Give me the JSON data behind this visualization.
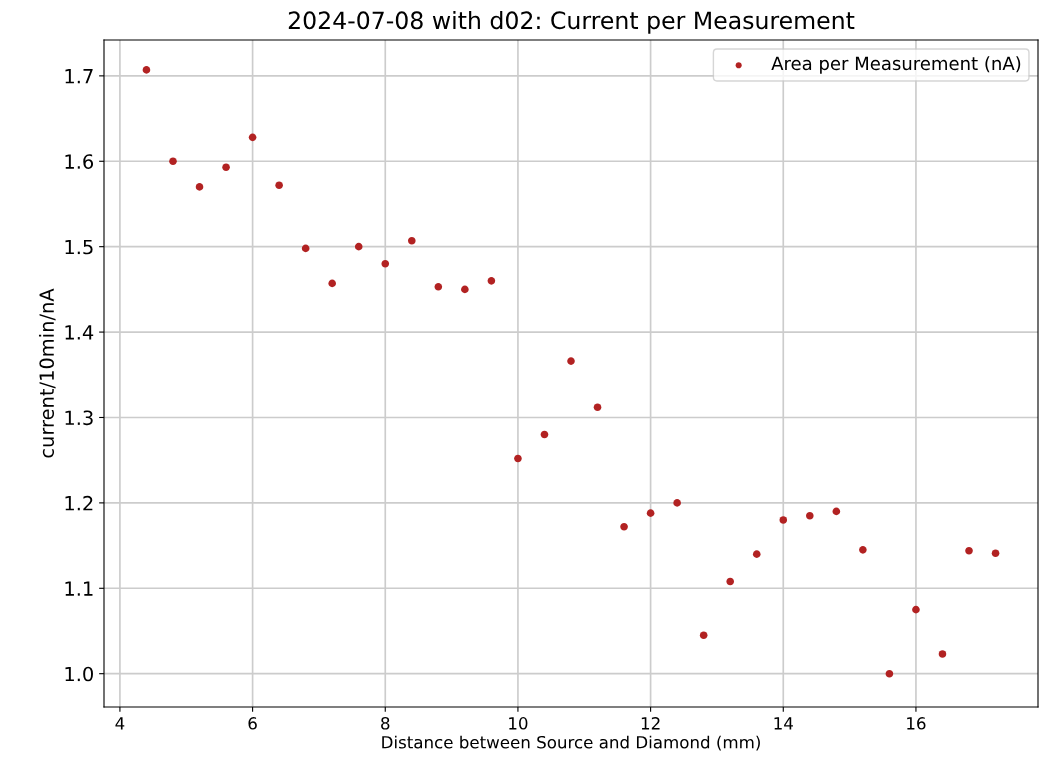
{
  "chart_data": {
    "type": "scatter",
    "title": "2024-07-08 with d02: Current per Measurement",
    "xlabel": "Distance between Source and Diamond (mm)",
    "ylabel": "current/10min/nA",
    "x": [
      4.4,
      4.8,
      5.2,
      5.6,
      6.0,
      6.4,
      6.8,
      7.2,
      7.6,
      8.0,
      8.4,
      8.8,
      9.2,
      9.6,
      10.0,
      10.4,
      10.8,
      11.2,
      11.6,
      12.0,
      12.4,
      12.8,
      13.2,
      13.6,
      14.0,
      14.4,
      14.8,
      15.2,
      15.6,
      16.0,
      16.4,
      16.8,
      17.2
    ],
    "series": [
      {
        "name": "Area per Measurement (nA)",
        "color": "#b22222",
        "values": [
          1.707,
          1.6,
          1.57,
          1.593,
          1.628,
          1.572,
          1.498,
          1.457,
          1.5,
          1.48,
          1.507,
          1.453,
          1.45,
          1.46,
          1.252,
          1.28,
          1.366,
          1.312,
          1.172,
          1.188,
          1.2,
          1.045,
          1.108,
          1.14,
          1.18,
          1.185,
          1.19,
          1.145,
          1.0,
          1.075,
          1.023,
          1.144,
          1.141
        ]
      }
    ],
    "xlim": [
      3.76,
      17.84
    ],
    "xticks": [
      4,
      6,
      8,
      10,
      12,
      14,
      16
    ],
    "ylim": [
      0.961,
      1.742
    ],
    "yticks": [
      {
        "value": 1.0,
        "label": "1.0"
      },
      {
        "value": 1.1,
        "label": "1.1"
      },
      {
        "value": 1.2,
        "label": "1.2"
      },
      {
        "value": 1.3,
        "label": "1.3"
      },
      {
        "value": 1.4,
        "label": "1.4"
      },
      {
        "value": 1.5,
        "label": "1.5"
      },
      {
        "value": 1.6,
        "label": "1.6"
      },
      {
        "value": 1.7,
        "label": "1.7"
      }
    ],
    "grid": true,
    "legend": "top right",
    "marker": "circle"
  }
}
